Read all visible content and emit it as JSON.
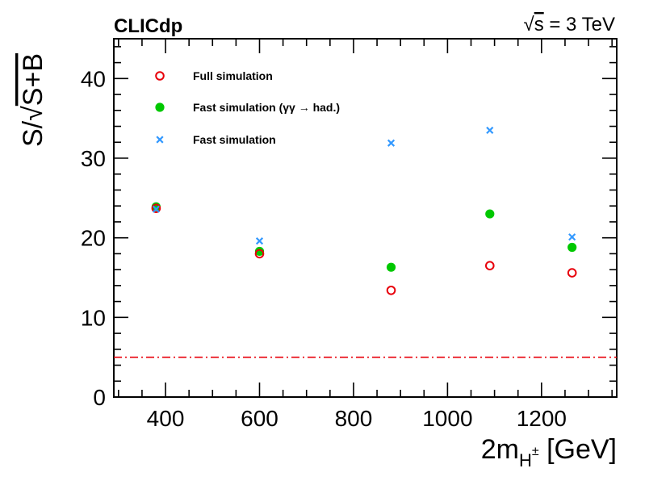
{
  "chart_data": {
    "type": "scatter",
    "experiment_label": "CLICdp",
    "energy_label": {
      "sqrt_symbol": "√",
      "symbol": "s",
      "value": " = 3 TeV"
    },
    "xlabel": {
      "main": "2m",
      "subscript": "H",
      "superscript": "±",
      "unit": " [GeV]"
    },
    "ylabel": {
      "prefix": "S/",
      "sqrt_symbol": "√",
      "radicand": "S+B"
    },
    "xlim": [
      290,
      1360
    ],
    "ylim": [
      0,
      45
    ],
    "x_ticks": [
      400,
      600,
      800,
      1000,
      1200
    ],
    "y_ticks": [
      0,
      10,
      20,
      30,
      40
    ],
    "reference_line": {
      "y": 5,
      "style": "dash-dot",
      "color": "#e8000b"
    },
    "series": [
      {
        "name": "Full simulation",
        "marker": "open-circle",
        "color": "#e8000b",
        "points": [
          [
            380,
            23.7
          ],
          [
            600,
            18.0
          ],
          [
            880,
            13.4
          ],
          [
            1090,
            16.5
          ],
          [
            1265,
            15.6
          ]
        ]
      },
      {
        "name": "Fast simulation (γγ  → had.)",
        "marker": "filled-circle",
        "color": "#00c800",
        "points": [
          [
            380,
            23.9
          ],
          [
            600,
            18.3
          ],
          [
            880,
            16.3
          ],
          [
            1090,
            23.0
          ],
          [
            1265,
            18.8
          ]
        ]
      },
      {
        "name": "Fast simulation",
        "marker": "cross",
        "color": "#3399ff",
        "points": [
          [
            380,
            23.6
          ],
          [
            600,
            19.6
          ],
          [
            880,
            31.9
          ],
          [
            1090,
            33.5
          ],
          [
            1265,
            20.1
          ]
        ]
      }
    ]
  }
}
